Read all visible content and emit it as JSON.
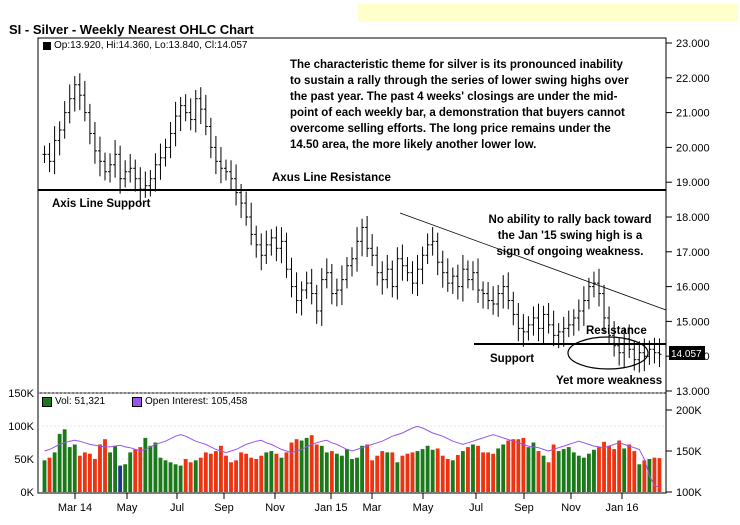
{
  "header": {
    "title": "SI - Silver - Weekly Nearest OHLC Chart",
    "ohlc_label": "Op:13.920, Hi:14.360, Lo:13.840, Cl:14.057"
  },
  "annotations": {
    "commentary": [
      "The characteristic theme for silver is its pronounced inability",
      "to sustain a rally through the series of lower swing highs over",
      "the past year.  The past 4 weeks' closings are under the mid-",
      "point of each weekly bar, a demonstration that buyers cannot",
      "overcome selling efforts.  The long price remains under the",
      "14.50 area, the more likely another lower low."
    ],
    "axus_resistance": "Axus Line Resistance",
    "axis_support": "Axis Line Support",
    "no_ability": [
      "No ability to rally back toward",
      "the Jan '15 swing high is a",
      "sign of ongoing weakness."
    ],
    "resistance": "Resistance",
    "support": "Support",
    "yet_more": "Yet more weakness"
  },
  "volume_legend": {
    "vol": "Vol: 51,321",
    "open_interest": "Open Interest: 105,458"
  },
  "colors": {
    "up_volume": "#1a7a1a",
    "down_volume": "#ee3311",
    "flat_volume": "#223399",
    "open_interest": "#9955ee",
    "price_bars": "#000000",
    "header_highlight": "#ffffcc"
  },
  "chart_data": [
    {
      "type": "ohlc",
      "title": "SI - Silver - Weekly Nearest OHLC Chart",
      "ylim": [
        13.0,
        23.0
      ],
      "y_ticks": [
        "23.000",
        "22.000",
        "21.000",
        "20.000",
        "19.000",
        "18.000",
        "17.000",
        "16.000",
        "15.000",
        "14.000",
        "13.000"
      ],
      "last_value": "14.057",
      "x_ticks": [
        "Mar 14",
        "May",
        "Jul",
        "Sep",
        "Nov",
        "Jan 15",
        "Mar",
        "May",
        "Jul",
        "Sep",
        "Nov",
        "Jan 16"
      ],
      "weekly_close_approx": [
        19.8,
        19.6,
        20.2,
        20.5,
        21.0,
        21.4,
        21.8,
        21.5,
        21.0,
        20.4,
        19.9,
        19.6,
        19.3,
        19.5,
        19.8,
        19.1,
        19.3,
        19.4,
        19.1,
        18.8,
        18.9,
        19.1,
        19.5,
        19.7,
        20.0,
        20.4,
        20.9,
        21.2,
        21.0,
        20.8,
        21.4,
        21.1,
        20.6,
        20.0,
        19.6,
        19.4,
        19.3,
        19.1,
        18.7,
        18.4,
        18.0,
        17.5,
        17.2,
        16.9,
        17.2,
        17.4,
        17.1,
        17.3,
        16.5,
        16.0,
        15.6,
        15.9,
        16.1,
        15.8,
        15.3,
        16.2,
        16.4,
        15.8,
        15.9,
        16.2,
        16.6,
        16.8,
        17.3,
        17.7,
        17.1,
        16.9,
        16.4,
        16.2,
        16.5,
        16.0,
        16.8,
        16.6,
        16.4,
        16.1,
        16.5,
        16.9,
        17.2,
        17.3,
        16.7,
        16.4,
        16.1,
        16.3,
        16.0,
        16.5,
        16.2,
        16.4,
        15.9,
        15.8,
        15.6,
        15.5,
        15.8,
        16.0,
        15.6,
        15.2,
        14.8,
        14.7,
        14.9,
        15.1,
        14.8,
        15.2,
        14.9,
        14.6,
        14.7,
        14.8,
        14.9,
        15.1,
        15.3,
        15.6,
        16.0,
        16.1,
        15.8,
        15.1,
        14.6,
        14.3,
        14.1,
        14.5,
        14.2,
        13.9,
        14.1,
        14.0,
        14.2,
        14.1,
        14.057
      ],
      "annotation_lines": [
        {
          "label": "Axis Line Support / Axus Line Resistance",
          "y": 18.7
        },
        {
          "label": "Support / Resistance",
          "y": 14.35
        }
      ]
    },
    {
      "type": "bar",
      "title": "Volume / Open Interest",
      "ylim": [
        0,
        150000
      ],
      "y_ticks_left": [
        "150K",
        "100K",
        "50K",
        "0K"
      ],
      "y_ticks_right": [
        "200K",
        "150K",
        "100K"
      ],
      "series": [
        {
          "name": "Vol",
          "values": [
            48000,
            52000,
            60000,
            88000,
            95000,
            68000,
            72000,
            55000,
            60000,
            58000,
            50000,
            72000,
            80000,
            60000,
            70000,
            40000,
            42000,
            60000,
            65000,
            68000,
            82000,
            70000,
            75000,
            52000,
            48000,
            45000,
            42000,
            40000,
            50000,
            45000,
            48000,
            52000,
            60000,
            58000,
            62000,
            70000,
            55000,
            45000,
            48000,
            60000,
            58000,
            52000,
            50000,
            55000,
            60000,
            62000,
            58000,
            52000,
            60000,
            75000,
            80000,
            78000,
            82000,
            86000,
            72000,
            70000,
            60000,
            62000,
            58000,
            55000,
            65000,
            50000,
            52000,
            70000,
            72000,
            48000,
            55000,
            62000,
            60000,
            60000,
            45000,
            55000,
            58000,
            60000,
            62000,
            65000,
            70000,
            64000,
            66000,
            55000,
            50000,
            48000,
            56000,
            62000,
            68000,
            72000,
            70000,
            60000,
            60000,
            58000,
            66000,
            72000,
            78000,
            80000,
            80000,
            82000,
            68000,
            75000,
            62000,
            55000,
            45000,
            72000,
            62000,
            65000,
            68000,
            60000,
            55000,
            52000,
            58000,
            64000,
            68000,
            76000,
            70000,
            65000,
            78000,
            66000,
            72000,
            62000,
            42000,
            48000,
            50000,
            52000,
            51321
          ]
        },
        {
          "name": "Open Interest",
          "values": [
            150000,
            152000,
            155000,
            158000,
            160000,
            162000,
            163000,
            162000,
            160000,
            158000,
            157000,
            156000,
            155000,
            155000,
            156000,
            157000,
            155000,
            154000,
            152000,
            150000,
            152000,
            155000,
            158000,
            160000,
            162000,
            165000,
            168000,
            170000,
            168000,
            165000,
            162000,
            160000,
            158000,
            155000,
            152000,
            150000,
            148000,
            150000,
            152000,
            155000,
            158000,
            160000,
            162000,
            163000,
            160000,
            158000,
            155000,
            152000,
            150000,
            148000,
            150000,
            152000,
            155000,
            158000,
            160000,
            162000,
            163000,
            160000,
            158000,
            155000,
            152000,
            150000,
            152000,
            154000,
            156000,
            158000,
            160000,
            162000,
            165000,
            168000,
            170000,
            172000,
            175000,
            178000,
            180000,
            178000,
            175000,
            172000,
            170000,
            168000,
            165000,
            162000,
            160000,
            158000,
            160000,
            162000,
            164000,
            166000,
            168000,
            170000,
            168000,
            166000,
            164000,
            162000,
            160000,
            158000,
            156000,
            155000,
            154000,
            152000,
            150000,
            152000,
            154000,
            156000,
            158000,
            160000,
            162000,
            160000,
            158000,
            156000,
            155000,
            154000,
            156000,
            158000,
            160000,
            158000,
            156000,
            154000,
            152000,
            140000,
            120000,
            108000,
            105458
          ]
        }
      ]
    }
  ]
}
